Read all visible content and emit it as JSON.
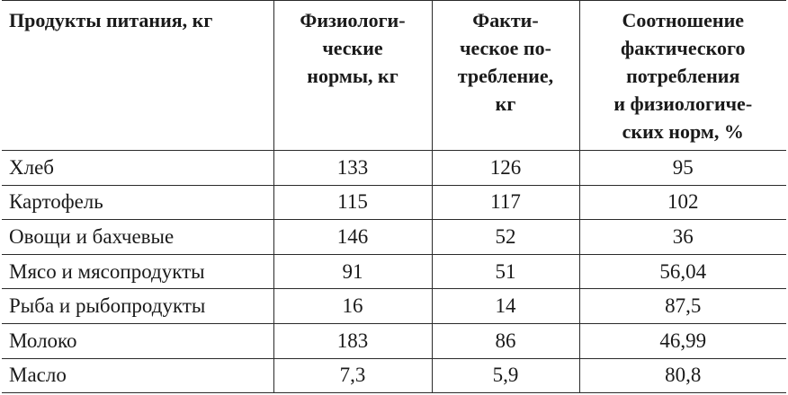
{
  "table": {
    "headers": [
      {
        "lines": [
          "Продукты питания, кг"
        ]
      },
      {
        "lines": [
          "Физиологи-",
          "ческие",
          "нормы, кг"
        ]
      },
      {
        "lines": [
          "Факти-",
          "ческое по-",
          "требление,",
          "кг"
        ]
      },
      {
        "lines": [
          "Соотношение",
          "фактического",
          "потребления",
          "и физиологиче-",
          "ских норм, %"
        ]
      }
    ],
    "rows": [
      {
        "product": "Хлеб",
        "norm": "133",
        "actual": "126",
        "ratio": "95"
      },
      {
        "product": "Картофель",
        "norm": "115",
        "actual": "117",
        "ratio": "102"
      },
      {
        "product": "Овощи и бахчевые",
        "norm": "146",
        "actual": "52",
        "ratio": "36"
      },
      {
        "product": "Мясо и мясопродукты",
        "norm": "91",
        "actual": "51",
        "ratio": "56,04"
      },
      {
        "product": "Рыба и рыбопродукты",
        "norm": "16",
        "actual": "14",
        "ratio": "87,5"
      },
      {
        "product": "Молоко",
        "norm": "183",
        "actual": "86",
        "ratio": "46,99"
      },
      {
        "product": "Масло",
        "norm": "7,3",
        "actual": "5,9",
        "ratio": "80,8"
      }
    ]
  }
}
